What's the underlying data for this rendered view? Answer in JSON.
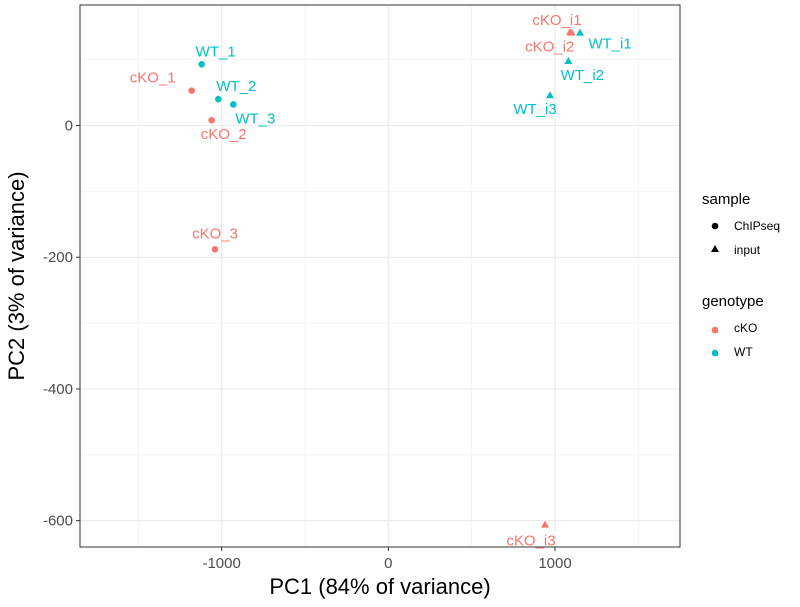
{
  "chart_data": {
    "type": "scatter",
    "xlabel": "PC1 (84% of variance)",
    "ylabel": "PC2 (3% of variance)",
    "xlim": [
      -1850,
      1750
    ],
    "ylim": [
      -640,
      183
    ],
    "x_ticks": [
      -1000,
      0,
      1000
    ],
    "x_tick_labels": [
      "-1000",
      "0",
      "1000"
    ],
    "y_ticks": [
      -600,
      -400,
      -200,
      0
    ],
    "y_tick_labels": [
      "-600",
      "-400",
      "-200",
      "0"
    ],
    "grid": true,
    "colors": {
      "cKO": "#F8766D",
      "WT": "#00BFC4"
    },
    "points": [
      {
        "label": "cKO_1",
        "x": -1180,
        "y": 53,
        "genotype": "cKO",
        "sample": "ChIPseq"
      },
      {
        "label": "cKO_2",
        "x": -1060,
        "y": 8,
        "genotype": "cKO",
        "sample": "ChIPseq"
      },
      {
        "label": "cKO_3",
        "x": -1040,
        "y": -188,
        "genotype": "cKO",
        "sample": "ChIPseq"
      },
      {
        "label": "WT_1",
        "x": -1120,
        "y": 93,
        "genotype": "WT",
        "sample": "ChIPseq"
      },
      {
        "label": "WT_2",
        "x": -1020,
        "y": 40,
        "genotype": "WT",
        "sample": "ChIPseq"
      },
      {
        "label": "WT_3",
        "x": -930,
        "y": 32,
        "genotype": "WT",
        "sample": "ChIPseq"
      },
      {
        "label": "cKO_i1",
        "x": 1090,
        "y": 142,
        "genotype": "cKO",
        "sample": "input"
      },
      {
        "label": "cKO_i2",
        "x": 1100,
        "y": 141,
        "genotype": "cKO",
        "sample": "input"
      },
      {
        "label": "cKO_i3",
        "x": 940,
        "y": -606,
        "genotype": "cKO",
        "sample": "input"
      },
      {
        "label": "WT_i1",
        "x": 1150,
        "y": 141,
        "genotype": "WT",
        "sample": "input"
      },
      {
        "label": "WT_i2",
        "x": 1080,
        "y": 98,
        "genotype": "WT",
        "sample": "input"
      },
      {
        "label": "WT_i3",
        "x": 970,
        "y": 46,
        "genotype": "WT",
        "sample": "input"
      }
    ],
    "legend": {
      "position": "right",
      "sample": {
        "title": "sample",
        "entries": [
          "ChIPseq",
          "input"
        ]
      },
      "genotype": {
        "title": "genotype",
        "entries": [
          "cKO",
          "WT"
        ]
      }
    }
  }
}
